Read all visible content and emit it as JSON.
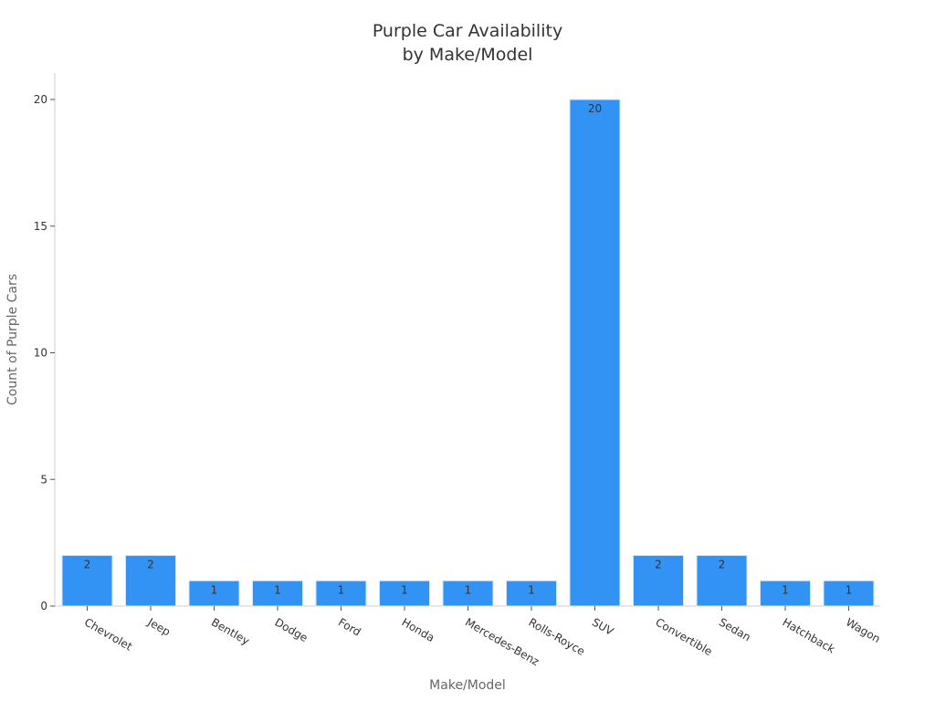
{
  "chart_data": {
    "type": "bar",
    "title_lines": [
      "Purple Car Availability",
      "by Make/Model"
    ],
    "xlabel": "Make/Model",
    "ylabel": "Count of Purple Cars",
    "categories": [
      "Chevrolet",
      "Jeep",
      "Bentley",
      "Dodge",
      "Ford",
      "Honda",
      "Mercedes-Benz",
      "Rolls-Royce",
      "SUV",
      "Convertible",
      "Sedan",
      "Hatchback",
      "Wagon"
    ],
    "values": [
      2,
      2,
      1,
      1,
      1,
      1,
      1,
      1,
      20,
      2,
      2,
      1,
      1
    ],
    "ylim": [
      0,
      21
    ],
    "yticks": [
      0,
      5,
      10,
      15,
      20
    ],
    "grid": false,
    "bar_color": "#3293f5"
  }
}
